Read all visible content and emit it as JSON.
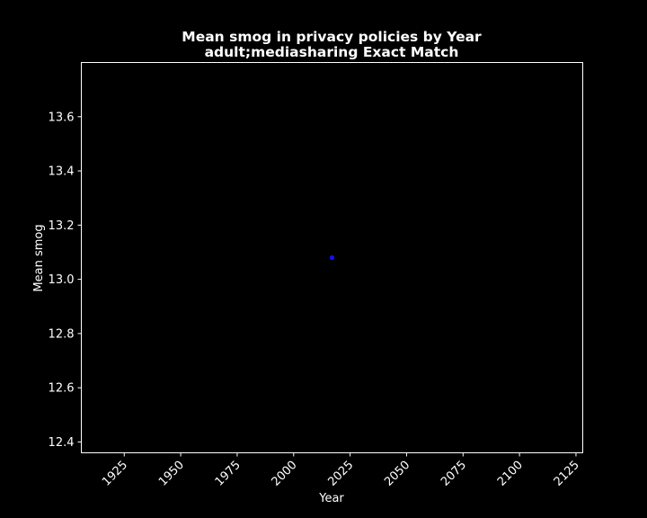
{
  "chart_data": {
    "type": "scatter",
    "title_line1": "Mean smog in privacy policies by Year",
    "title_line2": "adult;mediasharing Exact Match",
    "xlabel": "Year",
    "ylabel": "Mean smog",
    "xlim": [
      1906,
      2128
    ],
    "ylim": [
      12.36,
      13.8
    ],
    "xticks": [
      1925,
      1950,
      1975,
      2000,
      2025,
      2050,
      2075,
      2100,
      2125
    ],
    "yticks": [
      12.4,
      12.6,
      12.8,
      13.0,
      13.2,
      13.4,
      13.6
    ],
    "ytick_labels": [
      "12.4",
      "12.6",
      "12.8",
      "13.0",
      "13.2",
      "13.4",
      "13.6"
    ],
    "points": [
      {
        "x": 2017,
        "y": 13.08
      }
    ],
    "colors": {
      "background": "#000000",
      "axes": "#ffffff",
      "point": "#1010ff"
    }
  }
}
